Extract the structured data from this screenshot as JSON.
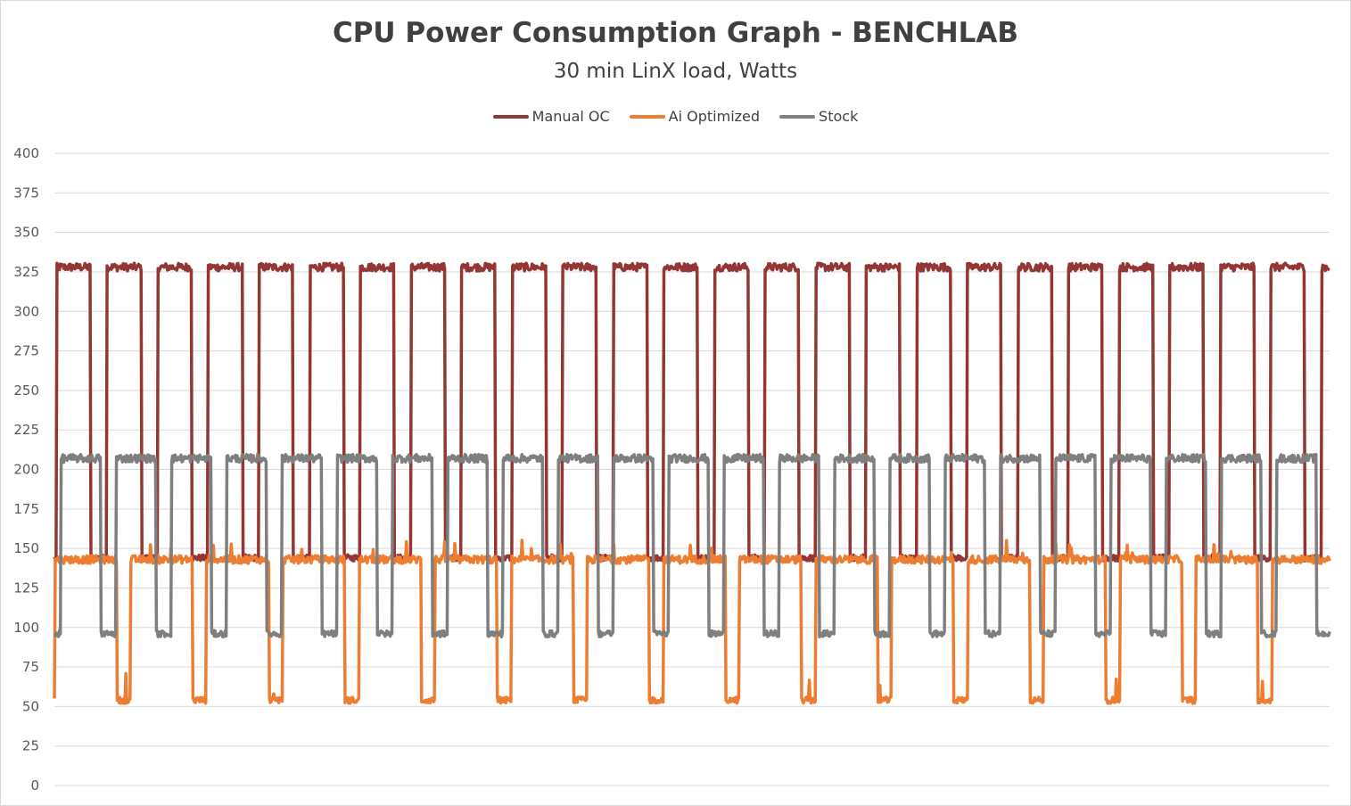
{
  "title": "CPU Power Consumption Graph - BENCHLAB",
  "subtitle": "30 min LinX load, Watts",
  "chart_data": {
    "type": "line",
    "title": "CPU Power Consumption Graph - BENCHLAB",
    "subtitle": "30 min LinX load, Watts",
    "xlabel": "",
    "ylabel": "",
    "ylim": [
      0,
      400
    ],
    "yticks": [
      "0",
      "25",
      "50",
      "75",
      "100",
      "125",
      "150",
      "175",
      "200",
      "225",
      "250",
      "275",
      "300",
      "325",
      "350",
      "375",
      "400"
    ],
    "grid": true,
    "legend_position": "top",
    "x_range": [
      0,
      30
    ],
    "x_unit": "min",
    "series": [
      {
        "name": "Manual OC",
        "color": "#943634",
        "description_segments": "square wave",
        "pattern": {
          "cycles": 24,
          "high": 328,
          "low": 144,
          "period_min": 1.19,
          "duty_high": 0.68
        }
      },
      {
        "name": "Ai Optimized",
        "color": "#ED7D31",
        "pattern": {
          "cycles": 16,
          "high": 143,
          "low": 54,
          "period_min": 1.79,
          "duty_high": 0.82
        }
      },
      {
        "name": "Stock",
        "color": "#7F7F7F",
        "pattern": {
          "cycles": 24,
          "high": 207,
          "low": 96,
          "period_min": 1.3,
          "duty_high": 0.72
        }
      }
    ]
  }
}
